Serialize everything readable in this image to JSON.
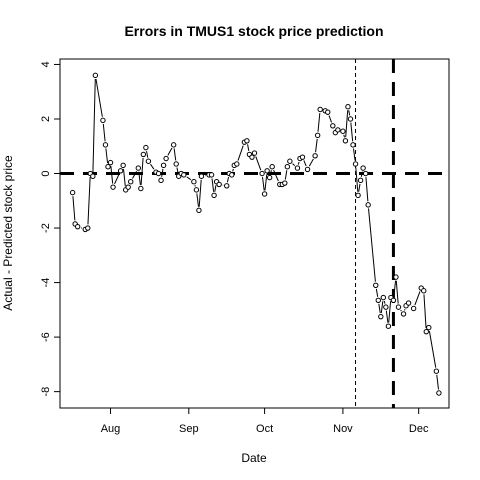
{
  "chart_data": {
    "type": "scatter",
    "title": "Errors in TMUS1 stock price prediction",
    "xlabel": "Date",
    "ylabel": "Actual - Predicted stock price",
    "x_tick_labels": [
      "Aug",
      "Sep",
      "Oct",
      "Nov",
      "Dec"
    ],
    "x_tick_dates": [
      "2024-08-01",
      "2024-09-01",
      "2024-10-01",
      "2024-11-01",
      "2024-12-01"
    ],
    "xlim": [
      "2024-07-12",
      "2024-12-13"
    ],
    "y_ticks": [
      -8,
      -6,
      -4,
      -2,
      0,
      2,
      4
    ],
    "ylim": [
      -8.6,
      4.2
    ],
    "grid": false,
    "legend": "none",
    "reference_lines": [
      {
        "orientation": "horizontal",
        "value": 0,
        "style": "dashed-thick"
      },
      {
        "orientation": "vertical",
        "value": "2024-11-06",
        "style": "dashed-thin"
      },
      {
        "orientation": "vertical",
        "value": "2024-11-21",
        "style": "dashed-thick"
      }
    ],
    "series": [
      {
        "style": "points-and-lines",
        "points": [
          {
            "x": "2024-07-17",
            "y": -0.7
          },
          {
            "x": "2024-07-18",
            "y": -1.85
          },
          {
            "x": "2024-07-19",
            "y": -1.95
          },
          {
            "x": "2024-07-22",
            "y": -2.05
          },
          {
            "x": "2024-07-23",
            "y": -2.0
          },
          {
            "x": "2024-07-24",
            "y": 0.0
          },
          {
            "x": "2024-07-25",
            "y": -0.1
          },
          {
            "x": "2024-07-26",
            "y": 3.6
          },
          {
            "x": "2024-07-29",
            "y": 1.95
          },
          {
            "x": "2024-07-30",
            "y": 1.05
          },
          {
            "x": "2024-07-31",
            "y": 0.25
          },
          {
            "x": "2024-08-01",
            "y": 0.4
          },
          {
            "x": "2024-08-02",
            "y": -0.5
          },
          {
            "x": "2024-08-05",
            "y": 0.1
          },
          {
            "x": "2024-08-06",
            "y": 0.3
          },
          {
            "x": "2024-08-07",
            "y": -0.6
          },
          {
            "x": "2024-08-08",
            "y": -0.5
          },
          {
            "x": "2024-08-09",
            "y": -0.3
          },
          {
            "x": "2024-08-12",
            "y": 0.2
          },
          {
            "x": "2024-08-13",
            "y": -0.55
          },
          {
            "x": "2024-08-14",
            "y": 0.7
          },
          {
            "x": "2024-08-15",
            "y": 0.95
          },
          {
            "x": "2024-08-16",
            "y": 0.45
          },
          {
            "x": "2024-08-19",
            "y": 0.05
          },
          {
            "x": "2024-08-20",
            "y": 0.0
          },
          {
            "x": "2024-08-21",
            "y": -0.25
          },
          {
            "x": "2024-08-22",
            "y": 0.3
          },
          {
            "x": "2024-08-23",
            "y": 0.55
          },
          {
            "x": "2024-08-26",
            "y": 1.05
          },
          {
            "x": "2024-08-27",
            "y": 0.35
          },
          {
            "x": "2024-08-28",
            "y": -0.1
          },
          {
            "x": "2024-08-29",
            "y": 0.0
          },
          {
            "x": "2024-08-30",
            "y": -0.05
          },
          {
            "x": "2024-09-03",
            "y": -0.3
          },
          {
            "x": "2024-09-04",
            "y": -0.6
          },
          {
            "x": "2024-09-05",
            "y": -1.35
          },
          {
            "x": "2024-09-06",
            "y": -0.1
          },
          {
            "x": "2024-09-09",
            "y": -0.05
          },
          {
            "x": "2024-09-10",
            "y": -0.05
          },
          {
            "x": "2024-09-11",
            "y": -0.8
          },
          {
            "x": "2024-09-12",
            "y": -0.3
          },
          {
            "x": "2024-09-13",
            "y": -0.4
          },
          {
            "x": "2024-09-16",
            "y": -0.45
          },
          {
            "x": "2024-09-17",
            "y": 0.0
          },
          {
            "x": "2024-09-18",
            "y": -0.05
          },
          {
            "x": "2024-09-19",
            "y": 0.3
          },
          {
            "x": "2024-09-20",
            "y": 0.35
          },
          {
            "x": "2024-09-23",
            "y": 1.15
          },
          {
            "x": "2024-09-24",
            "y": 1.2
          },
          {
            "x": "2024-09-25",
            "y": 0.7
          },
          {
            "x": "2024-09-26",
            "y": 0.6
          },
          {
            "x": "2024-09-27",
            "y": 0.75
          },
          {
            "x": "2024-09-30",
            "y": 0.0
          },
          {
            "x": "2024-10-01",
            "y": -0.75
          },
          {
            "x": "2024-10-02",
            "y": 0.1
          },
          {
            "x": "2024-10-03",
            "y": -0.15
          },
          {
            "x": "2024-10-04",
            "y": 0.25
          },
          {
            "x": "2024-10-07",
            "y": -0.4
          },
          {
            "x": "2024-10-08",
            "y": -0.4
          },
          {
            "x": "2024-10-09",
            "y": -0.35
          },
          {
            "x": "2024-10-10",
            "y": 0.25
          },
          {
            "x": "2024-10-11",
            "y": 0.45
          },
          {
            "x": "2024-10-14",
            "y": 0.2
          },
          {
            "x": "2024-10-15",
            "y": 0.55
          },
          {
            "x": "2024-10-16",
            "y": 0.6
          },
          {
            "x": "2024-10-18",
            "y": 0.15
          },
          {
            "x": "2024-10-21",
            "y": 0.65
          },
          {
            "x": "2024-10-22",
            "y": 1.4
          },
          {
            "x": "2024-10-23",
            "y": 2.35
          },
          {
            "x": "2024-10-25",
            "y": 2.3
          },
          {
            "x": "2024-10-26",
            "y": 2.25
          },
          {
            "x": "2024-10-28",
            "y": 1.75
          },
          {
            "x": "2024-10-29",
            "y": 1.5
          },
          {
            "x": "2024-10-30",
            "y": 1.6
          },
          {
            "x": "2024-11-01",
            "y": 1.55
          },
          {
            "x": "2024-11-02",
            "y": 1.2
          },
          {
            "x": "2024-11-03",
            "y": 2.45
          },
          {
            "x": "2024-11-04",
            "y": 2.0
          },
          {
            "x": "2024-11-05",
            "y": 1.05
          },
          {
            "x": "2024-11-06",
            "y": 0.35
          },
          {
            "x": "2024-11-07",
            "y": -0.8
          },
          {
            "x": "2024-11-08",
            "y": -0.25
          },
          {
            "x": "2024-11-09",
            "y": 0.2
          },
          {
            "x": "2024-11-10",
            "y": 0.0
          },
          {
            "x": "2024-11-11",
            "y": -1.15
          },
          {
            "x": "2024-11-14",
            "y": -4.1
          },
          {
            "x": "2024-11-15",
            "y": -4.65
          },
          {
            "x": "2024-11-16",
            "y": -5.25
          },
          {
            "x": "2024-11-17",
            "y": -4.55
          },
          {
            "x": "2024-11-18",
            "y": -4.9
          },
          {
            "x": "2024-11-19",
            "y": -5.6
          },
          {
            "x": "2024-11-20",
            "y": -4.55
          },
          {
            "x": "2024-11-21",
            "y": -4.65
          },
          {
            "x": "2024-11-22",
            "y": -3.8
          },
          {
            "x": "2024-11-23",
            "y": -4.9
          },
          {
            "x": "2024-11-25",
            "y": -5.15
          },
          {
            "x": "2024-11-26",
            "y": -4.85
          },
          {
            "x": "2024-11-27",
            "y": -4.75
          },
          {
            "x": "2024-11-29",
            "y": -4.95
          },
          {
            "x": "2024-12-02",
            "y": -4.2
          },
          {
            "x": "2024-12-03",
            "y": -4.3
          },
          {
            "x": "2024-12-04",
            "y": -5.8
          },
          {
            "x": "2024-12-05",
            "y": -5.65
          },
          {
            "x": "2024-12-08",
            "y": -7.25
          },
          {
            "x": "2024-12-09",
            "y": -8.05
          }
        ]
      }
    ]
  }
}
